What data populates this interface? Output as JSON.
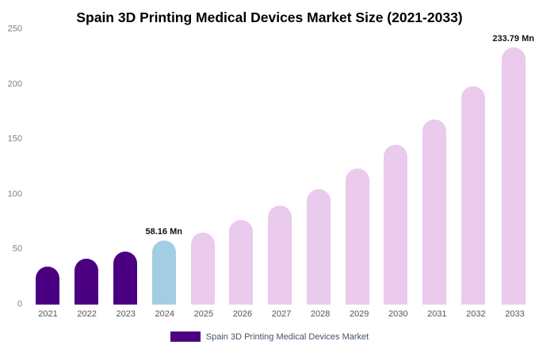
{
  "title": "Spain 3D Printing Medical Devices Market Size (2021-2033)",
  "legend": {
    "label": "Spain 3D Printing Medical Devices Market",
    "swatch_color": "#4B0082"
  },
  "colors": {
    "historical": "#4B0082",
    "base_year": "#A3CDE2",
    "forecast": "#EACAED"
  },
  "chart_data": {
    "type": "bar",
    "title": "Spain 3D Printing Medical Devices Market Size (2021-2033)",
    "xlabel": "",
    "ylabel": "",
    "unit": "Mn",
    "categories": [
      "2021",
      "2022",
      "2023",
      "2024",
      "2025",
      "2026",
      "2027",
      "2028",
      "2029",
      "2030",
      "2031",
      "2032",
      "2033"
    ],
    "values": [
      34.5,
      41.5,
      48,
      58.16,
      65.5,
      77,
      90,
      105,
      123.5,
      145,
      168,
      198,
      233.79
    ],
    "bar_colors": [
      "#4B0082",
      "#4B0082",
      "#4B0082",
      "#A3CDE2",
      "#EACAED",
      "#EACAED",
      "#EACAED",
      "#EACAED",
      "#EACAED",
      "#EACAED",
      "#EACAED",
      "#EACAED",
      "#EACAED"
    ],
    "point_labels": {
      "2024": "58.16 Mn",
      "2033": "233.79 Mn"
    },
    "ylim": [
      0,
      250
    ],
    "yticks": [
      0,
      50,
      100,
      150,
      200,
      250
    ],
    "grid": false,
    "legend_position": "bottom"
  }
}
